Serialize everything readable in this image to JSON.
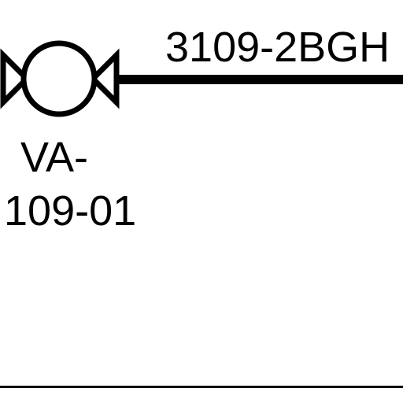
{
  "diagram": {
    "line_label": "3109-2BGH",
    "valve": {
      "tag_line1": "VA-",
      "tag_line2": "109-01",
      "icon": "ball-valve-icon"
    }
  },
  "colors": {
    "ink": "#000000",
    "background": "#ffffff"
  }
}
